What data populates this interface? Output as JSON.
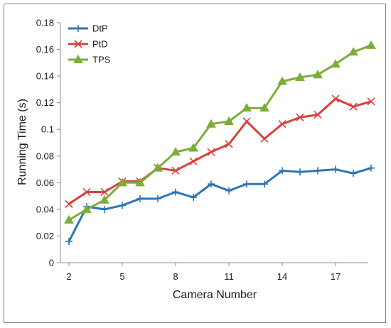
{
  "chart_data": {
    "type": "line",
    "xlabel": "Camera Number",
    "ylabel": "Running Time (s)",
    "x": [
      2,
      3,
      4,
      5,
      6,
      7,
      8,
      9,
      10,
      11,
      12,
      13,
      14,
      15,
      16,
      17,
      18,
      19
    ],
    "xlim": [
      2,
      19
    ],
    "xticks": [
      2,
      5,
      8,
      11,
      14,
      17
    ],
    "ylim": [
      0,
      0.18
    ],
    "yticks": [
      0,
      0.02,
      0.04,
      0.06,
      0.08,
      0.1,
      0.12,
      0.14,
      0.16,
      0.18
    ],
    "ytick_labels": [
      "0",
      "0.02",
      "0.04",
      "0.06",
      "0.08",
      "0.1",
      "0.12",
      "0.14",
      "0.16",
      "0.18"
    ],
    "grid": false,
    "legend_position": "top-left",
    "series": [
      {
        "name": "DtP",
        "color": "#2e75b6",
        "marker": "plus",
        "values": [
          0.016,
          0.042,
          0.04,
          0.043,
          0.048,
          0.048,
          0.053,
          0.049,
          0.059,
          0.054,
          0.059,
          0.059,
          0.069,
          0.068,
          0.069,
          0.07,
          0.067,
          0.071
        ]
      },
      {
        "name": "PtD",
        "color": "#d9403e",
        "marker": "x",
        "values": [
          0.044,
          0.053,
          0.053,
          0.061,
          0.061,
          0.071,
          0.069,
          0.076,
          0.083,
          0.089,
          0.106,
          0.093,
          0.104,
          0.109,
          0.111,
          0.123,
          0.117,
          0.121
        ]
      },
      {
        "name": "TPS",
        "color": "#7cad3b",
        "marker": "triangle",
        "values": [
          0.032,
          0.04,
          0.047,
          0.06,
          0.06,
          0.071,
          0.083,
          0.086,
          0.104,
          0.106,
          0.116,
          0.116,
          0.136,
          0.139,
          0.141,
          0.149,
          0.158,
          0.163
        ]
      }
    ]
  }
}
